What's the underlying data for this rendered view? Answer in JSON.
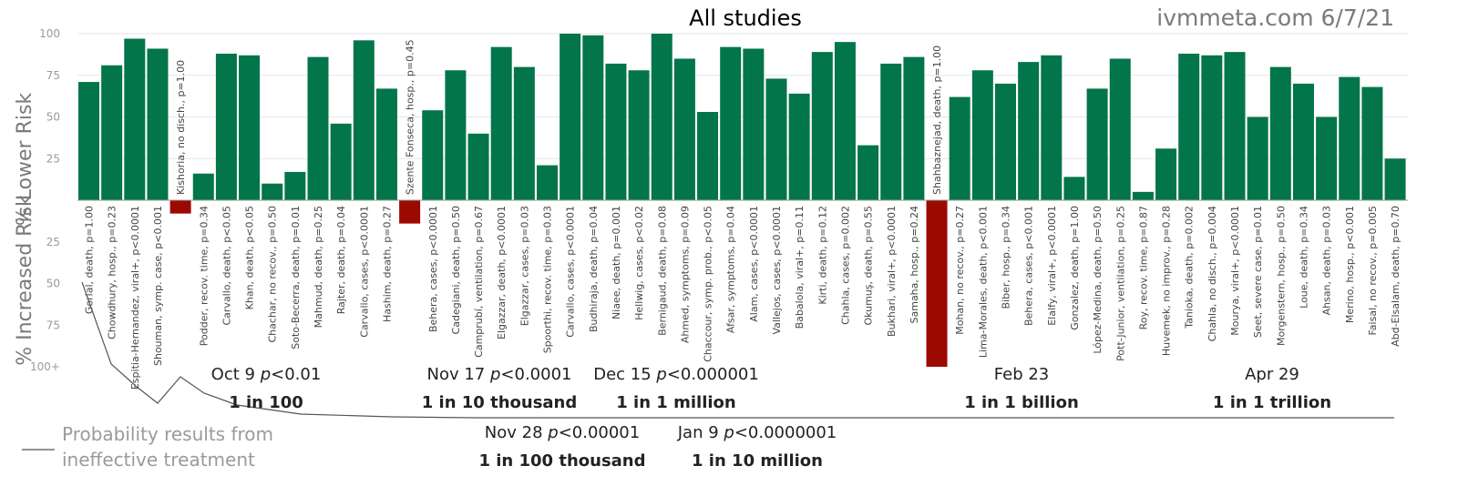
{
  "chart_data": {
    "type": "bar",
    "title": "All studies",
    "source": "ivmmeta.com 6/7/21",
    "ylabel_top": "% Lower Risk",
    "ylabel_bottom": "% Increased Risk",
    "ylim": [
      -100,
      100
    ],
    "yticks_up": [
      "100",
      "75",
      "50",
      "25"
    ],
    "yticks_down": [
      "25",
      "50",
      "75",
      "100+"
    ],
    "colors": {
      "positive": "#03754a",
      "negative": "#9b0a00",
      "line": "#555555"
    },
    "bars": [
      {
        "label": "Gorial, death, p=1.00",
        "value": 71
      },
      {
        "label": "Chowdhury, hosp., p=0.23",
        "value": 81
      },
      {
        "label": "Espitia-Hernandez, viral+, p<0.0001",
        "value": 97
      },
      {
        "label": "Shouman, symp. case, p<0.001",
        "value": 91
      },
      {
        "label": "Kishoria, no disch., p=1.00",
        "value": -8
      },
      {
        "label": "Podder, recov. time, p=0.34",
        "value": 16
      },
      {
        "label": "Carvallo, death, p<0.05",
        "value": 88
      },
      {
        "label": "Khan, death, p<0.05",
        "value": 87
      },
      {
        "label": "Chachar, no recov., p=0.50",
        "value": 10
      },
      {
        "label": "Soto-Becerra, death, p=0.01",
        "value": 17
      },
      {
        "label": "Mahmud, death, p=0.25",
        "value": 86
      },
      {
        "label": "Rajter, death, p=0.04",
        "value": 46
      },
      {
        "label": "Carvallo, cases, p<0.0001",
        "value": 96
      },
      {
        "label": "Hashim, death, p=0.27",
        "value": 67
      },
      {
        "label": "Szente Fonseca, hosp., p=0.45",
        "value": -14
      },
      {
        "label": "Behera, cases, p<0.0001",
        "value": 54
      },
      {
        "label": "Cadegiani, death, p=0.50",
        "value": 78
      },
      {
        "label": "Camprubí, ventilation, p=0.67",
        "value": 40
      },
      {
        "label": "Elgazzar, death, p<0.0001",
        "value": 92
      },
      {
        "label": "Elgazzar, cases, p=0.03",
        "value": 80
      },
      {
        "label": "Spoorthi, recov. time, p=0.03",
        "value": 21
      },
      {
        "label": "Carvallo, cases, p<0.0001",
        "value": 100
      },
      {
        "label": "Budhiraja, death, p=0.04",
        "value": 99
      },
      {
        "label": "Niaee, death, p=0.001",
        "value": 82
      },
      {
        "label": "Hellwig, cases, p<0.02",
        "value": 78
      },
      {
        "label": "Bernigaud, death, p=0.08",
        "value": 100
      },
      {
        "label": "Ahmed, symptoms, p=0.09",
        "value": 85
      },
      {
        "label": "Chaccour, symp. prob., p<0.05",
        "value": 53
      },
      {
        "label": "Afsar, symptoms, p=0.04",
        "value": 92
      },
      {
        "label": "Alam, cases, p<0.0001",
        "value": 91
      },
      {
        "label": "Vallejos, cases, p<0.0001",
        "value": 73
      },
      {
        "label": "Babalola, viral+, p=0.11",
        "value": 64
      },
      {
        "label": "Kirti, death, p=0.12",
        "value": 89
      },
      {
        "label": "Chahla, cases, p=0.002",
        "value": 95
      },
      {
        "label": "Okumuş, death, p=0.55",
        "value": 33
      },
      {
        "label": "Bukhari, viral+, p<0.0001",
        "value": 82
      },
      {
        "label": "Samaha, hosp., p=0.24",
        "value": 86
      },
      {
        "label": "Shahbaznejad, death, p=1.00",
        "value": -100
      },
      {
        "label": "Mohan, no recov., p=0.27",
        "value": 62
      },
      {
        "label": "Lima-Morales, death, p<0.001",
        "value": 78
      },
      {
        "label": "Biber, hosp., p=0.34",
        "value": 70
      },
      {
        "label": "Behera, cases, p<0.001",
        "value": 83
      },
      {
        "label": "Elalfy, viral+, p<0.0001",
        "value": 87
      },
      {
        "label": "Gonzalez, death, p=1.00",
        "value": 14
      },
      {
        "label": "López-Medina, death, p=0.50",
        "value": 67
      },
      {
        "label": "Pott-Junior, ventilation, p=0.25",
        "value": 85
      },
      {
        "label": "Roy, recov. time, p=0.87",
        "value": 5
      },
      {
        "label": "Huvemek, no improv., p=0.28",
        "value": 31
      },
      {
        "label": "Tanioka, death, p=0.002",
        "value": 88
      },
      {
        "label": "Chahla, no disch., p=0.004",
        "value": 87
      },
      {
        "label": "Mourya, viral+, p<0.0001",
        "value": 89
      },
      {
        "label": "Seet, severe case, p=0.01",
        "value": 50
      },
      {
        "label": "Morgenstern, hosp., p=0.50",
        "value": 80
      },
      {
        "label": "Loue, death, p=0.34",
        "value": 70
      },
      {
        "label": "Ahsan, death, p=0.03",
        "value": 50
      },
      {
        "label": "Merino, hosp., p<0.001",
        "value": 74
      },
      {
        "label": "Faisal, no recov., p=0.005",
        "value": 68
      },
      {
        "label": "Abd-Elsalam, death, p=0.70",
        "value": 25
      }
    ],
    "events": [
      {
        "date": "Oct 9",
        "p": "p<0.01",
        "odds": "1 in 100"
      },
      {
        "date": "Nov 17",
        "p": "p<0.0001",
        "odds": "1 in 10 thousand"
      },
      {
        "date": "Dec 15",
        "p": "p<0.000001",
        "odds": "1 in 1 million"
      },
      {
        "date": "Feb 23",
        "p": "",
        "odds": "1 in 1 billion"
      },
      {
        "date": "Apr 29",
        "p": "",
        "odds": "1 in 1 trillion"
      },
      {
        "date": "Nov 28",
        "p": "p<0.00001",
        "odds": "1 in 100 thousand"
      },
      {
        "date": "Jan 9",
        "p": "p<0.0000001",
        "odds": "1 in 10 million"
      }
    ],
    "legend": [
      "Probability results from",
      "ineffective treatment"
    ]
  }
}
